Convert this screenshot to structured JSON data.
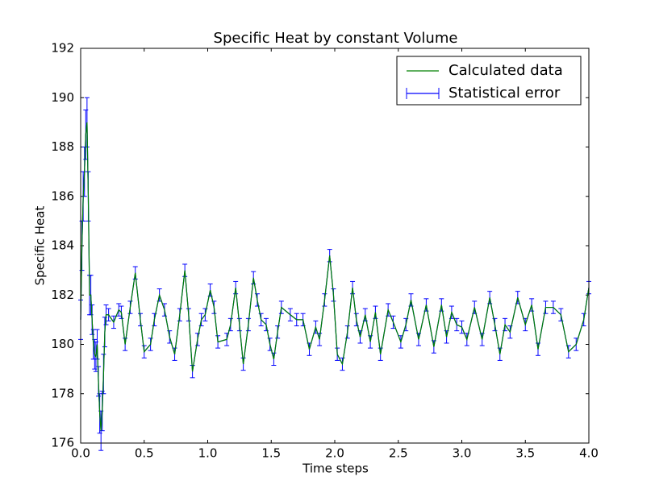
{
  "chart_data": {
    "type": "errorbar-line",
    "title": "Specific Heat by constant Volume",
    "xlabel": "Time steps",
    "ylabel": "Specific Heat",
    "x": [
      0,
      0.01,
      0.02,
      0.03,
      0.04,
      0.05,
      0.06,
      0.07,
      0.08,
      0.09,
      0.1,
      0.11,
      0.12,
      0.13,
      0.14,
      0.15,
      0.16,
      0.17,
      0.18,
      0.19,
      0.2,
      0.22,
      0.26,
      0.3,
      0.32,
      0.35,
      0.39,
      0.43,
      0.47,
      0.5,
      0.55,
      0.58,
      0.62,
      0.66,
      0.7,
      0.74,
      0.78,
      0.82,
      0.85,
      0.88,
      0.92,
      0.95,
      0.98,
      1.02,
      1.05,
      1.08,
      1.15,
      1.18,
      1.22,
      1.25,
      1.28,
      1.32,
      1.36,
      1.39,
      1.42,
      1.46,
      1.49,
      1.52,
      1.55,
      1.58,
      1.65,
      1.7,
      1.75,
      1.8,
      1.85,
      1.88,
      1.92,
      1.96,
      1.99,
      2.02,
      2.06,
      2.1,
      2.14,
      2.17,
      2.2,
      2.24,
      2.28,
      2.32,
      2.36,
      2.42,
      2.46,
      2.52,
      2.56,
      2.6,
      2.66,
      2.72,
      2.78,
      2.84,
      2.88,
      2.92,
      2.96,
      3.0,
      3.04,
      3.1,
      3.16,
      3.22,
      3.26,
      3.3,
      3.34,
      3.38,
      3.44,
      3.5,
      3.55,
      3.6,
      3.66,
      3.72,
      3.78,
      3.84,
      3.9,
      3.96,
      4.0
    ],
    "series": [
      {
        "name": "Calculated data",
        "color": "#008000",
        "values": [
          181,
          184,
          186,
          187,
          188.5,
          189,
          186,
          182,
          182,
          181,
          180,
          179.6,
          179.5,
          180,
          178.5,
          177.2,
          176.5,
          177.3,
          178.8,
          180.5,
          181.2,
          181.2,
          180.9,
          181.4,
          181.3,
          180,
          181.5,
          182.9,
          181,
          179.7,
          180,
          181,
          182,
          181.4,
          180.3,
          179.6,
          181.2,
          183,
          181.2,
          178.9,
          180.2,
          181,
          181.2,
          182.2,
          181.5,
          180.1,
          180.2,
          180.8,
          182.3,
          180.8,
          179.2,
          180.8,
          182.7,
          181.8,
          181,
          180.8,
          180,
          179.4,
          180.5,
          181.5,
          181.2,
          181,
          181,
          179.8,
          180.7,
          180.2,
          181.8,
          183.6,
          182,
          179.6,
          179.2,
          180.5,
          182.3,
          181,
          180.3,
          181.2,
          180.1,
          181.3,
          179.6,
          181.4,
          180.9,
          180.1,
          180.8,
          181.8,
          180.2,
          181.6,
          179.9,
          181.6,
          180.3,
          181.3,
          180.8,
          180.7,
          180.2,
          181.5,
          180.2,
          181.9,
          180.8,
          179.6,
          180.8,
          180.5,
          181.9,
          180.8,
          181.6,
          179.8,
          181.5,
          181.5,
          181.2,
          179.7,
          180,
          181,
          182.3
        ]
      },
      {
        "name": "Statistical error",
        "color": "#0000ff",
        "errors": [
          0.8,
          1,
          1,
          1,
          1,
          1,
          1,
          0.8,
          0.8,
          0.6,
          0.6,
          0.6,
          0.6,
          0.6,
          0.6,
          0.8,
          0.8,
          0.8,
          0.8,
          0.6,
          0.4,
          0.25,
          0.25,
          0.25,
          0.25,
          0.25,
          0.25,
          0.25,
          0.25,
          0.25,
          0.25,
          0.25,
          0.25,
          0.25,
          0.25,
          0.25,
          0.25,
          0.25,
          0.25,
          0.25,
          0.25,
          0.25,
          0.25,
          0.25,
          0.25,
          0.25,
          0.25,
          0.25,
          0.25,
          0.25,
          0.25,
          0.25,
          0.25,
          0.25,
          0.25,
          0.25,
          0.25,
          0.25,
          0.25,
          0.25,
          0.25,
          0.25,
          0.25,
          0.25,
          0.25,
          0.25,
          0.25,
          0.25,
          0.25,
          0.25,
          0.25,
          0.25,
          0.25,
          0.25,
          0.25,
          0.25,
          0.25,
          0.25,
          0.25,
          0.25,
          0.25,
          0.25,
          0.25,
          0.25,
          0.25,
          0.25,
          0.25,
          0.25,
          0.25,
          0.25,
          0.25,
          0.25,
          0.25,
          0.25,
          0.25,
          0.25,
          0.25,
          0.25,
          0.25,
          0.25,
          0.25,
          0.25,
          0.25,
          0.25,
          0.25,
          0.25,
          0.25,
          0.25,
          0.25,
          0.25,
          0.25
        ]
      }
    ],
    "xlim": [
      0,
      4
    ],
    "xticks": [
      {
        "value": 0,
        "label": "0.0"
      },
      0.5,
      {
        "value": 1,
        "label": "1.0"
      },
      1.5,
      {
        "value": 2,
        "label": "2.0"
      },
      2.5,
      {
        "value": 3,
        "label": "3.0"
      },
      3.5,
      {
        "value": 4,
        "label": "4.0"
      }
    ],
    "ylim": [
      176,
      192
    ],
    "yticks": [
      176,
      178,
      180,
      182,
      184,
      186,
      188,
      190,
      192
    ],
    "grid": false,
    "legend": "upper right"
  }
}
